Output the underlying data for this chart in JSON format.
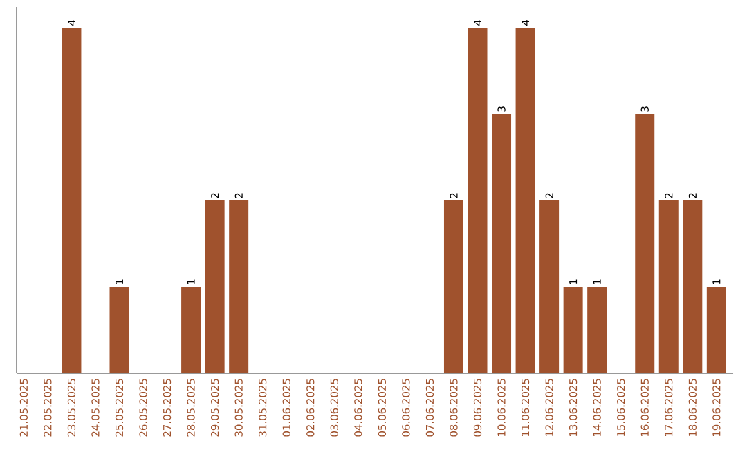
{
  "chart_data": {
    "type": "bar",
    "categories": [
      "21.05.2025",
      "22.05.2025",
      "23.05.2025",
      "24.05.2025",
      "25.05.2025",
      "26.05.2025",
      "27.05.2025",
      "28.05.2025",
      "29.05.2025",
      "30.05.2025",
      "31.05.2025",
      "01.06.2025",
      "02.06.2025",
      "03.06.2025",
      "04.06.2025",
      "05.06.2025",
      "06.06.2025",
      "07.06.2025",
      "08.06.2025",
      "09.06.2025",
      "10.06.2025",
      "11.06.2025",
      "12.06.2025",
      "13.06.2025",
      "14.06.2025",
      "15.06.2025",
      "16.06.2025",
      "17.06.2025",
      "18.06.2025",
      "19.06.2025"
    ],
    "values": [
      0,
      0,
      4,
      0,
      1,
      0,
      0,
      1,
      2,
      2,
      0,
      0,
      0,
      0,
      0,
      0,
      0,
      0,
      2,
      4,
      3,
      4,
      2,
      1,
      1,
      0,
      3,
      2,
      2,
      1
    ],
    "value_labels": [
      null,
      null,
      "4",
      null,
      "1",
      null,
      null,
      "1",
      "2",
      "2",
      null,
      null,
      null,
      null,
      null,
      null,
      null,
      null,
      "2",
      "4",
      "3",
      "4",
      "2",
      "1",
      "1",
      null,
      "3",
      "2",
      "2",
      "1"
    ],
    "color": "#a0522d"
  }
}
